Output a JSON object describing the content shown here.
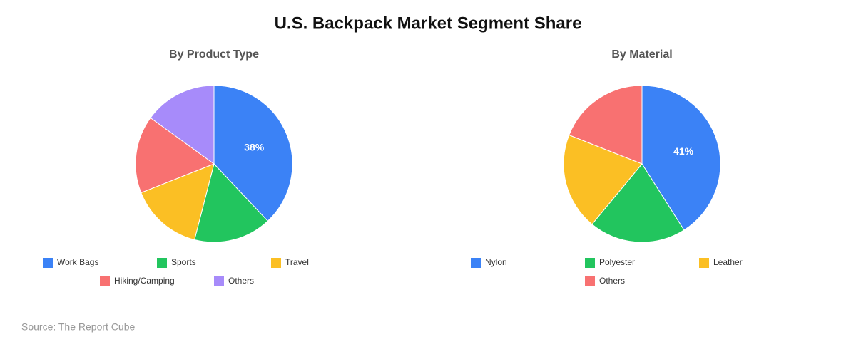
{
  "title": "U.S. Backpack Market Segment Share",
  "source": "Source: The Report Cube",
  "chart_data": [
    {
      "type": "pie",
      "title": "By Product Type",
      "categories": [
        "Work Bags",
        "Sports",
        "Travel",
        "Hiking/Camping",
        "Others"
      ],
      "values": [
        38,
        16,
        15,
        16,
        15
      ],
      "value_labels": [
        "38%",
        null,
        null,
        null,
        null
      ],
      "colors": [
        "#3b82f6",
        "#22c55e",
        "#fbbf24",
        "#f87171",
        "#a78bfa"
      ]
    },
    {
      "type": "pie",
      "title": "By Material",
      "categories": [
        "Nylon",
        "Polyester",
        "Leather",
        "Others"
      ],
      "values": [
        41,
        20,
        20,
        19
      ],
      "value_labels": [
        "41%",
        null,
        null,
        null
      ],
      "colors": [
        "#3b82f6",
        "#22c55e",
        "#fbbf24",
        "#f87171"
      ]
    }
  ]
}
